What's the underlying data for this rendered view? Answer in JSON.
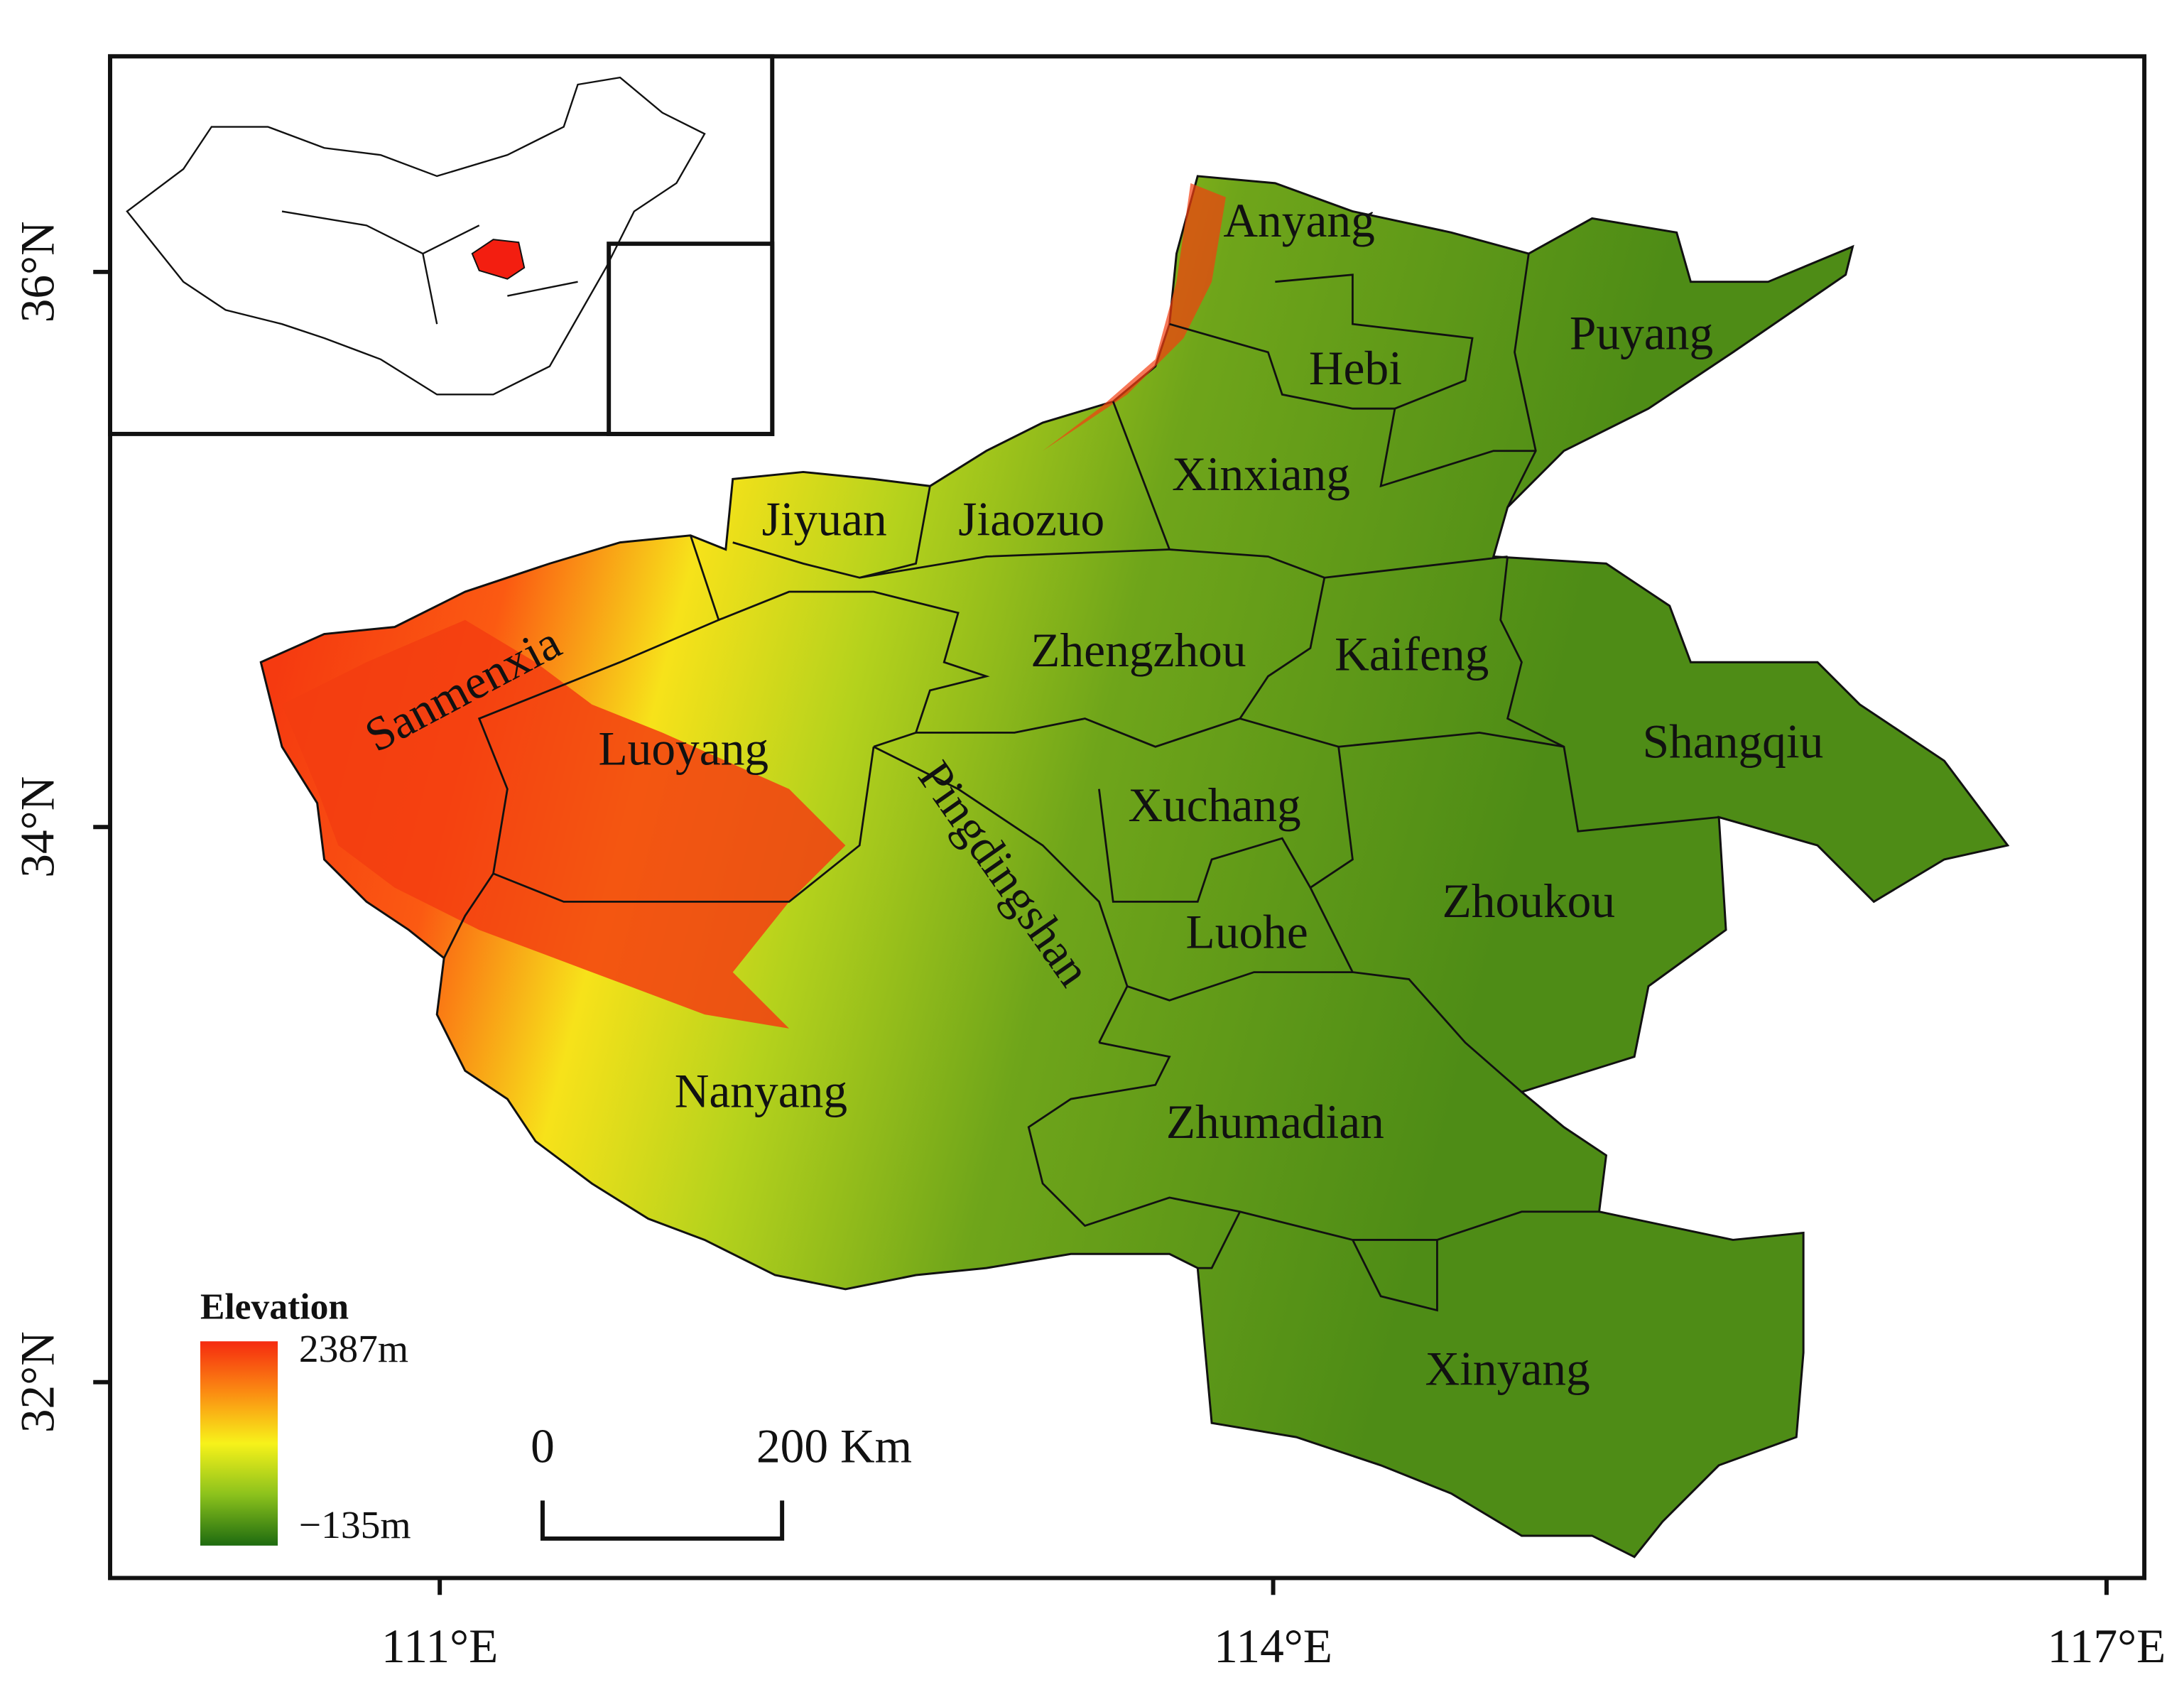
{
  "map": {
    "regions": [
      "Anyang",
      "Hebi",
      "Puyang",
      "Xinxiang",
      "Jiyuan",
      "Jiaozuo",
      "Zhengzhou",
      "Kaifeng",
      "Sanmenxia",
      "Luoyang",
      "Shangqiu",
      "Pingdingshan",
      "Xuchang",
      "Zhoukou",
      "Luohe",
      "Nanyang",
      "Zhumadian",
      "Xinyang"
    ],
    "legend": {
      "title": "Elevation",
      "max_label": "2387m",
      "min_label": "−135m"
    },
    "scale_bar": {
      "start": "0",
      "end": "200 Km"
    },
    "lat_ticks": [
      {
        "value": 36,
        "label": "36°N"
      },
      {
        "value": 34,
        "label": "34°N"
      },
      {
        "value": 32,
        "label": "32°N"
      }
    ],
    "lon_ticks": [
      {
        "value": 111,
        "label": "111°E"
      },
      {
        "value": 114,
        "label": "114°E"
      },
      {
        "value": 117,
        "label": "117°E"
      }
    ]
  }
}
